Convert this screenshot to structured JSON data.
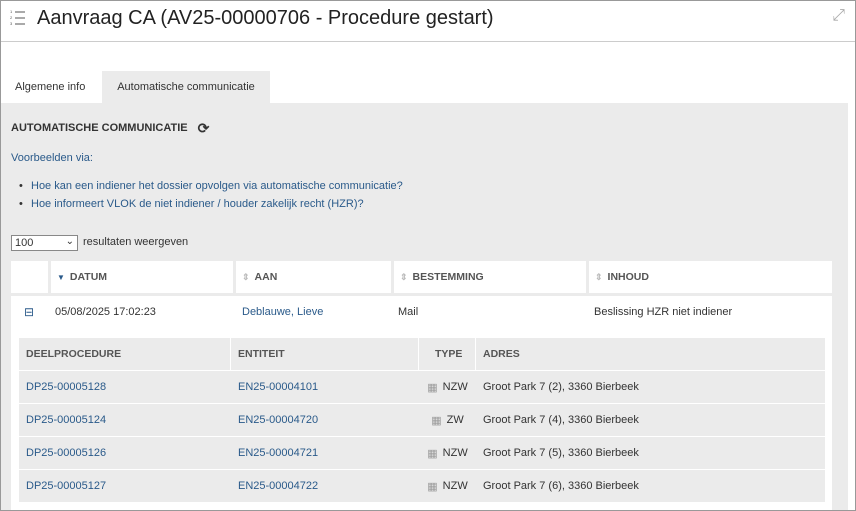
{
  "header": {
    "title": "Aanvraag CA (AV25-00000706 - Procedure gestart)"
  },
  "tabs": [
    {
      "label": "Algemene info",
      "active": false
    },
    {
      "label": "Automatische communicatie",
      "active": true
    }
  ],
  "section": {
    "title": "AUTOMATISCHE COMMUNICATIE",
    "examples_label": "Voorbeelden via:",
    "links": [
      "Hoe kan een indiener het dossier opvolgen via automatische communicatie?",
      "Hoe informeert VLOK de niet indiener / houder zakelijk recht (HZR)?"
    ]
  },
  "page_size": {
    "value": "100",
    "label": "resultaten weergeven"
  },
  "table": {
    "columns": [
      "DATUM",
      "AAN",
      "BESTEMMING",
      "INHOUD"
    ],
    "sort": "DATUM descending",
    "rows": [
      {
        "datum": "05/08/2025 17:02:23",
        "aan": "Deblauwe, Lieve",
        "bestemming": "Mail",
        "inhoud": "Beslissing HZR niet indiener"
      }
    ]
  },
  "detail": {
    "columns": [
      "DEELPROCEDURE",
      "ENTITEIT",
      "TYPE",
      "ADRES"
    ],
    "rows": [
      {
        "deelprocedure": "DP25-00005128",
        "entiteit": "EN25-00004101",
        "type": "NZW",
        "adres": "Groot Park 7 (2), 3360 Bierbeek"
      },
      {
        "deelprocedure": "DP25-00005124",
        "entiteit": "EN25-00004720",
        "type": "ZW",
        "adres": "Groot Park 7 (4), 3360 Bierbeek"
      },
      {
        "deelprocedure": "DP25-00005126",
        "entiteit": "EN25-00004721",
        "type": "NZW",
        "adres": "Groot Park 7 (5), 3360 Bierbeek"
      },
      {
        "deelprocedure": "DP25-00005127",
        "entiteit": "EN25-00004722",
        "type": "NZW",
        "adres": "Groot Park 7 (6), 3360 Bierbeek"
      }
    ]
  }
}
